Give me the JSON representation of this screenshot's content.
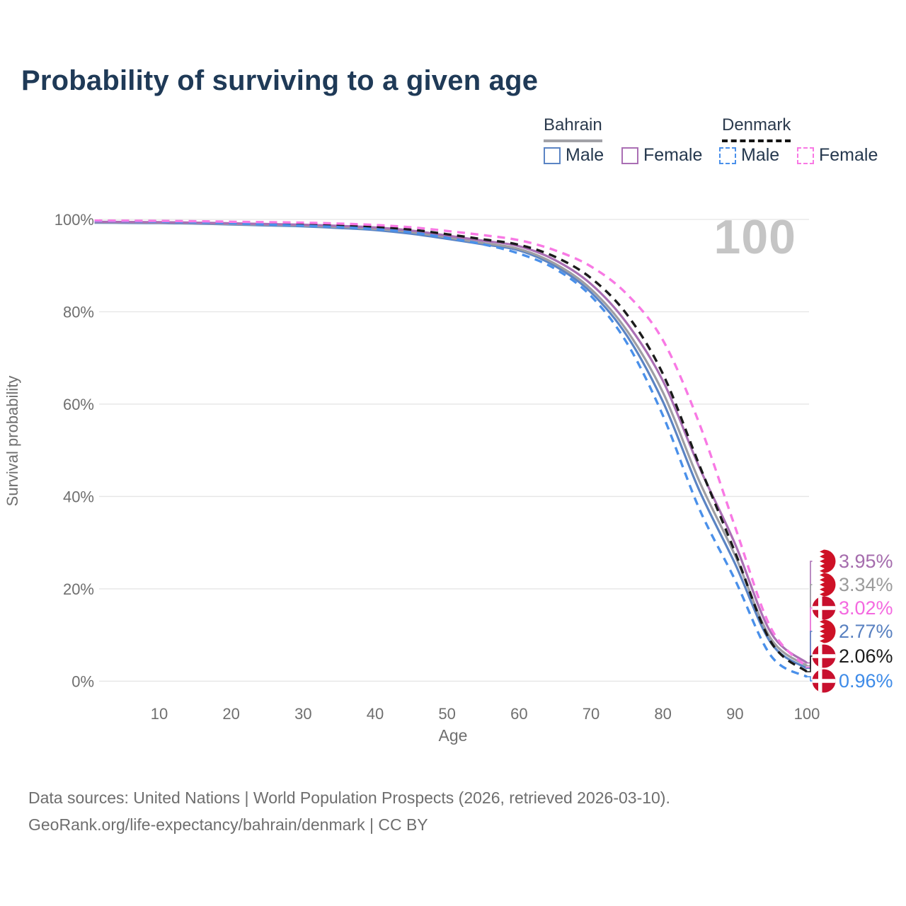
{
  "title": "Probability of surviving to a given age",
  "watermark": "100",
  "legend": {
    "groups": [
      {
        "label": "Bahrain",
        "line_style": "solid",
        "underline_color": "#a2a2a7",
        "items": [
          {
            "label": "Male",
            "color": "#5b84c4"
          },
          {
            "label": "Female",
            "color": "#aa6fb4"
          }
        ]
      },
      {
        "label": "Denmark",
        "line_style": "dashed",
        "underline_color": "#141414",
        "items": [
          {
            "label": "Male",
            "color": "#4a90ea"
          },
          {
            "label": "Female",
            "color": "#f879e4"
          }
        ]
      }
    ]
  },
  "chart_data": {
    "type": "line",
    "title": "Probability of surviving to a given age",
    "xlabel": "Age",
    "ylabel": "Survival probability",
    "xlim": [
      1,
      100
    ],
    "ylim": [
      0,
      100
    ],
    "grid": "horizontal",
    "xticks": [
      10,
      20,
      30,
      40,
      50,
      60,
      70,
      80,
      90,
      100
    ],
    "ytick_labels": [
      "0%",
      "20%",
      "40%",
      "60%",
      "80%",
      "100%"
    ],
    "yticks": [
      0,
      20,
      40,
      60,
      80,
      100
    ],
    "watermark_age": "100",
    "x": [
      1,
      5,
      10,
      15,
      20,
      25,
      30,
      35,
      40,
      45,
      50,
      55,
      60,
      65,
      70,
      75,
      80,
      85,
      90,
      95,
      100
    ],
    "series": [
      {
        "name": "Bahrain Male",
        "country": "bahrain",
        "sex": "male",
        "color": "#5b84c4",
        "dash": false,
        "label_color": "#5880c0",
        "end_label": "2.77%",
        "values": [
          99.3,
          99.25,
          99.2,
          99.1,
          98.9,
          98.7,
          98.5,
          98.15,
          97.7,
          96.9,
          95.8,
          94.6,
          93.3,
          89.9,
          84.2,
          74.8,
          60.5,
          41.5,
          25.5,
          8.3,
          2.77
        ]
      },
      {
        "name": "Bahrain",
        "country": "bahrain",
        "sex": "both",
        "color": "#9e9ea3",
        "dash": false,
        "label_color": "#9b9b9b",
        "end_label": "3.34%",
        "values": [
          99.4,
          99.35,
          99.3,
          99.2,
          99.0,
          98.85,
          98.65,
          98.35,
          97.95,
          97.25,
          96.1,
          94.9,
          93.6,
          90.4,
          84.9,
          75.9,
          62.5,
          43.5,
          27.3,
          9.2,
          3.34
        ]
      },
      {
        "name": "Bahrain Female",
        "country": "bahrain",
        "sex": "female",
        "color": "#aa6fb4",
        "dash": false,
        "label_color": "#a56cad",
        "end_label": "3.95%",
        "values": [
          99.5,
          99.45,
          99.4,
          99.3,
          99.15,
          99.0,
          98.85,
          98.6,
          98.25,
          97.6,
          96.5,
          95.4,
          94.2,
          91.2,
          86.0,
          77.5,
          65.0,
          46.5,
          29.8,
          10.5,
          3.95
        ]
      },
      {
        "name": "Denmark",
        "country": "denmark",
        "sex": "both",
        "color": "#1b1b1b",
        "dash": true,
        "label_color": "#1c1c1c",
        "end_label": "2.06%",
        "values": [
          99.7,
          99.65,
          99.6,
          99.5,
          99.35,
          99.15,
          99.0,
          98.75,
          98.4,
          97.8,
          96.8,
          95.7,
          94.5,
          91.9,
          87.3,
          79.4,
          66.5,
          47.0,
          28.0,
          8.5,
          2.06
        ]
      },
      {
        "name": "Denmark Male",
        "country": "denmark",
        "sex": "male",
        "color": "#4a90ea",
        "dash": true,
        "label_color": "#3e8be8",
        "end_label": "0.96%",
        "values": [
          99.65,
          99.6,
          99.5,
          99.35,
          99.15,
          98.9,
          98.65,
          98.35,
          97.9,
          97.2,
          96.0,
          94.6,
          92.6,
          89.3,
          83.4,
          73.2,
          57.5,
          37.5,
          22.0,
          5.5,
          0.96
        ]
      },
      {
        "name": "Denmark Female",
        "country": "denmark",
        "sex": "female",
        "color": "#f879e4",
        "dash": true,
        "label_color": "#f469e0",
        "end_label": "3.02%",
        "values": [
          99.75,
          99.72,
          99.68,
          99.6,
          99.5,
          99.4,
          99.3,
          99.1,
          98.8,
          98.3,
          97.5,
          96.6,
          95.5,
          93.3,
          89.8,
          83.8,
          73.8,
          56.0,
          33.5,
          11.5,
          3.02
        ]
      }
    ],
    "flag_colors": {
      "bahrain_red": "#ce1126",
      "denmark_red": "#c8102e"
    }
  },
  "footer": {
    "line1": "Data sources: United Nations | World Population Prospects (2026, retrieved 2026-03-10).",
    "line2": "GeoRank.org/life-expectancy/bahrain/denmark | CC BY"
  }
}
